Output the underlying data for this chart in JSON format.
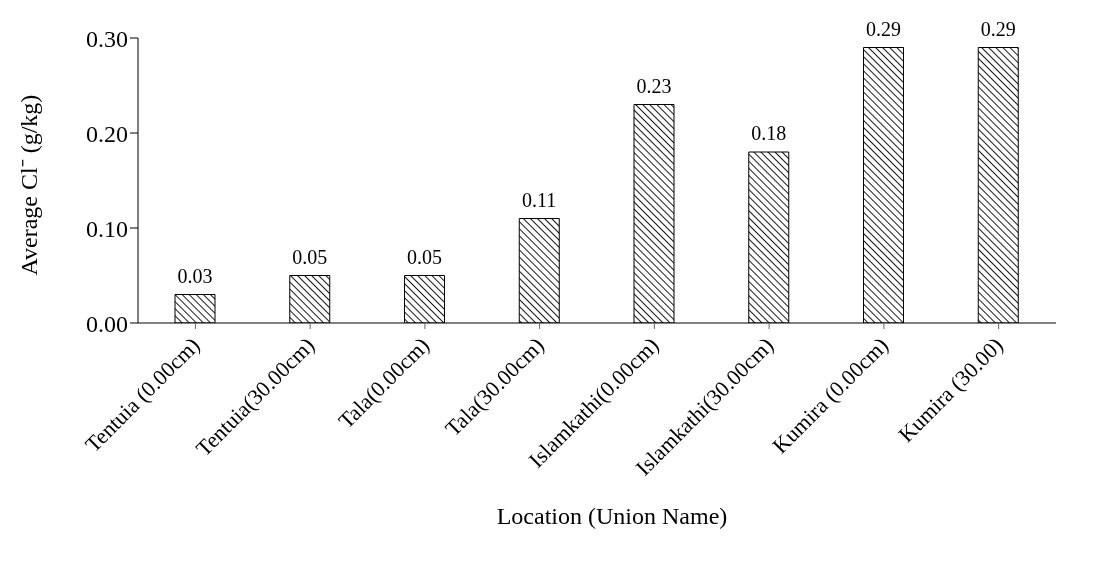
{
  "chart_data": {
    "type": "bar",
    "xlabel": "Location (Union Name)",
    "ylabel": "Average Cl⁻ (g/kg)",
    "categories": [
      "Tentuia (0.00cm)",
      "Tentuia(30.00cm)",
      "Tala(0.00cm)",
      "Tala(30.00cm)",
      "Islamkathi(0.00cm)",
      "Islamkathi(30.00cm)",
      "Kumira (0.00cm)",
      "Kumira (30.00)"
    ],
    "values": [
      0.03,
      0.05,
      0.05,
      0.11,
      0.23,
      0.18,
      0.29,
      0.29
    ],
    "color": "#000000",
    "ylim": [
      0,
      0.3
    ],
    "yticks": [
      {
        "value": 0,
        "label": "0.00"
      },
      {
        "value": 0.1,
        "label": "0.10"
      },
      {
        "value": 0.2,
        "label": "0.20"
      },
      {
        "value": 0.3,
        "label": "0.30"
      }
    ],
    "data_labels": true,
    "grid": false,
    "legend": false
  }
}
